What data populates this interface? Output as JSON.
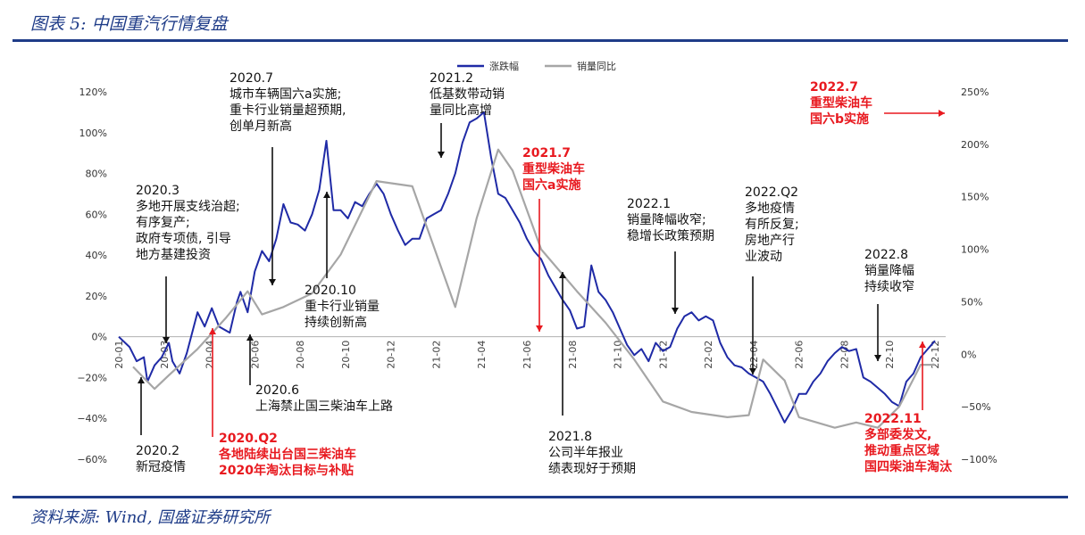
{
  "header": {
    "title": "图表 5: 中国重汽行情复盘"
  },
  "footer": {
    "source": "资料来源: Wind, 国盛证券研究所"
  },
  "colors": {
    "brand": "#1f3c88",
    "series1": "#1f2aa6",
    "series2": "#a6a6a6",
    "red": "#e8191f"
  },
  "chart_data": {
    "type": "line",
    "title": "",
    "legend": {
      "position": "top-center",
      "items": [
        "涨跌幅",
        "销量同比"
      ]
    },
    "x_ticks": [
      "20-01",
      "20-03",
      "20-04",
      "20-06",
      "20-08",
      "20-10",
      "20-12",
      "21-02",
      "21-04",
      "21-06",
      "21-08",
      "21-10",
      "21-12",
      "22-02",
      "22-04",
      "22-06",
      "22-08",
      "22-10",
      "22-12"
    ],
    "y_left": {
      "range": [
        -60,
        120
      ],
      "ticks": [
        "120%",
        "100%",
        "80%",
        "60%",
        "40%",
        "20%",
        "0%",
        "−20%",
        "−40%",
        "−60%"
      ]
    },
    "y_right": {
      "range": [
        -100,
        250
      ],
      "ticks": [
        "250%",
        "200%",
        "150%",
        "100%",
        "50%",
        "0%",
        "−50%",
        "−100%"
      ]
    },
    "series": [
      {
        "name": "涨跌幅",
        "axis": "left",
        "points": [
          [
            0,
            0
          ],
          [
            1.5,
            -5
          ],
          [
            2.5,
            -12
          ],
          [
            3.5,
            -10
          ],
          [
            4,
            -22
          ],
          [
            5,
            -14
          ],
          [
            6,
            -10
          ],
          [
            7,
            -3
          ],
          [
            7.5,
            -12
          ],
          [
            8.5,
            -18
          ],
          [
            9.5,
            -8
          ],
          [
            11,
            12
          ],
          [
            12,
            5
          ],
          [
            13,
            14
          ],
          [
            14,
            5
          ],
          [
            15.5,
            2
          ],
          [
            16.5,
            17
          ],
          [
            17,
            22
          ],
          [
            18,
            12
          ],
          [
            19,
            32
          ],
          [
            20,
            42
          ],
          [
            21,
            37
          ],
          [
            22,
            48
          ],
          [
            23,
            65
          ],
          [
            24,
            56
          ],
          [
            25,
            55
          ],
          [
            26,
            52
          ],
          [
            27,
            60
          ],
          [
            28,
            72
          ],
          [
            29,
            96
          ],
          [
            30,
            62
          ],
          [
            31,
            62
          ],
          [
            32,
            58
          ],
          [
            33,
            66
          ],
          [
            34,
            64
          ],
          [
            35,
            70
          ],
          [
            36,
            75
          ],
          [
            37,
            70
          ],
          [
            38,
            60
          ],
          [
            39,
            52
          ],
          [
            40,
            45
          ],
          [
            41,
            48
          ],
          [
            42,
            48
          ],
          [
            43,
            58
          ],
          [
            44,
            60
          ],
          [
            45,
            62
          ],
          [
            46,
            70
          ],
          [
            47,
            80
          ],
          [
            48,
            95
          ],
          [
            49,
            105
          ],
          [
            50,
            107
          ],
          [
            51,
            110
          ],
          [
            52,
            88
          ],
          [
            53,
            70
          ],
          [
            54,
            68
          ],
          [
            55,
            62
          ],
          [
            56,
            56
          ],
          [
            57,
            48
          ],
          [
            58,
            42
          ],
          [
            59,
            38
          ],
          [
            60,
            30
          ],
          [
            61,
            24
          ],
          [
            62,
            18
          ],
          [
            63,
            13
          ],
          [
            64,
            4
          ],
          [
            65,
            5
          ],
          [
            66,
            35
          ],
          [
            67,
            22
          ],
          [
            68,
            18
          ],
          [
            69,
            12
          ],
          [
            70,
            4
          ],
          [
            71,
            -4
          ],
          [
            72,
            -9
          ],
          [
            73,
            -6
          ],
          [
            74,
            -12
          ],
          [
            75,
            -3
          ],
          [
            76,
            -7
          ],
          [
            77,
            -5
          ],
          [
            78,
            4
          ],
          [
            79,
            10
          ],
          [
            80,
            12
          ],
          [
            81,
            8
          ],
          [
            82,
            10
          ],
          [
            83,
            8
          ],
          [
            84,
            -3
          ],
          [
            85,
            -10
          ],
          [
            86,
            -14
          ],
          [
            87,
            -15
          ],
          [
            88,
            -18
          ],
          [
            89,
            -20
          ],
          [
            90,
            -22
          ],
          [
            91,
            -28
          ],
          [
            92,
            -35
          ],
          [
            93,
            -42
          ],
          [
            94,
            -36
          ],
          [
            95,
            -28
          ],
          [
            96,
            -28
          ],
          [
            97,
            -22
          ],
          [
            98,
            -18
          ],
          [
            99,
            -12
          ],
          [
            100,
            -8
          ],
          [
            101,
            -5
          ],
          [
            102,
            -7
          ],
          [
            103,
            -6
          ],
          [
            104,
            -20
          ],
          [
            105,
            -22
          ],
          [
            106,
            -25
          ],
          [
            107,
            -28
          ],
          [
            108,
            -32
          ],
          [
            109,
            -34
          ],
          [
            110,
            -22
          ],
          [
            111,
            -18
          ],
          [
            112,
            -10
          ],
          [
            113,
            -6
          ],
          [
            114,
            -2
          ]
        ]
      },
      {
        "name": "销量同比",
        "axis": "right",
        "points": [
          [
            2,
            -12
          ],
          [
            5,
            -33
          ],
          [
            7,
            -20
          ],
          [
            11,
            5
          ],
          [
            15,
            35
          ],
          [
            18,
            60
          ],
          [
            20,
            38
          ],
          [
            23,
            45
          ],
          [
            27,
            58
          ],
          [
            31,
            95
          ],
          [
            36,
            165
          ],
          [
            41,
            160
          ],
          [
            47,
            45
          ],
          [
            50,
            130
          ],
          [
            53,
            195
          ],
          [
            55,
            175
          ],
          [
            59,
            100
          ],
          [
            64,
            60
          ],
          [
            68,
            30
          ],
          [
            72,
            -5
          ],
          [
            76,
            -45
          ],
          [
            80,
            -55
          ],
          [
            85,
            -60
          ],
          [
            88,
            -58
          ],
          [
            90,
            -5
          ],
          [
            93,
            -25
          ],
          [
            95,
            -60
          ],
          [
            100,
            -70
          ],
          [
            103,
            -65
          ],
          [
            106,
            -70
          ],
          [
            109,
            -50
          ],
          [
            112,
            -10
          ],
          [
            114,
            -10
          ]
        ]
      }
    ]
  },
  "annotations": [
    {
      "id": "a2002",
      "lines": [
        "2020.2",
        "新冠疫情"
      ],
      "color": "black"
    },
    {
      "id": "a2003",
      "lines": [
        "2020.3",
        "多地开展支线治超;",
        "有序复产;",
        "政府专项债, 引导",
        "地方基建投资"
      ],
      "color": "black"
    },
    {
      "id": "a20q2",
      "lines": [
        "2020.Q2",
        "各地陆续出台国三柴油车",
        "2020年淘汰目标与补贴"
      ],
      "color": "red"
    },
    {
      "id": "a2006",
      "lines": [
        "2020.6",
        "上海禁止国三柴油车上路"
      ],
      "color": "black"
    },
    {
      "id": "a2007",
      "lines": [
        "2020.7",
        "城市车辆国六a实施;",
        "重卡行业销量超预期,",
        "创单月新高"
      ],
      "color": "black"
    },
    {
      "id": "a2010",
      "lines": [
        "2020.10",
        "重卡行业销量",
        "持续创新高"
      ],
      "color": "black"
    },
    {
      "id": "a2102",
      "lines": [
        "2021.2",
        "低基数带动销",
        "量同比高增"
      ],
      "color": "black"
    },
    {
      "id": "a2107",
      "lines": [
        "2021.7",
        "重型柴油车",
        "国六a实施"
      ],
      "color": "red"
    },
    {
      "id": "a2108",
      "lines": [
        "2021.8",
        "公司半年报业",
        "绩表现好于预期"
      ],
      "color": "black"
    },
    {
      "id": "a2201",
      "lines": [
        "2022.1",
        "销量降幅收窄;",
        "稳增长政策预期"
      ],
      "color": "black"
    },
    {
      "id": "a22q2",
      "lines": [
        "2022.Q2",
        "多地疫情",
        "有所反复;",
        "房地产行",
        "业波动"
      ],
      "color": "black"
    },
    {
      "id": "a2207",
      "lines": [
        "2022.7",
        "重型柴油车",
        "国六b实施"
      ],
      "color": "red"
    },
    {
      "id": "a2208",
      "lines": [
        "2022.8",
        "销量降幅",
        "持续收窄"
      ],
      "color": "black"
    },
    {
      "id": "a2211",
      "lines": [
        "2022.11",
        "多部委发文,",
        "推动重点区域",
        "国四柴油车淘汰"
      ],
      "color": "red"
    }
  ]
}
